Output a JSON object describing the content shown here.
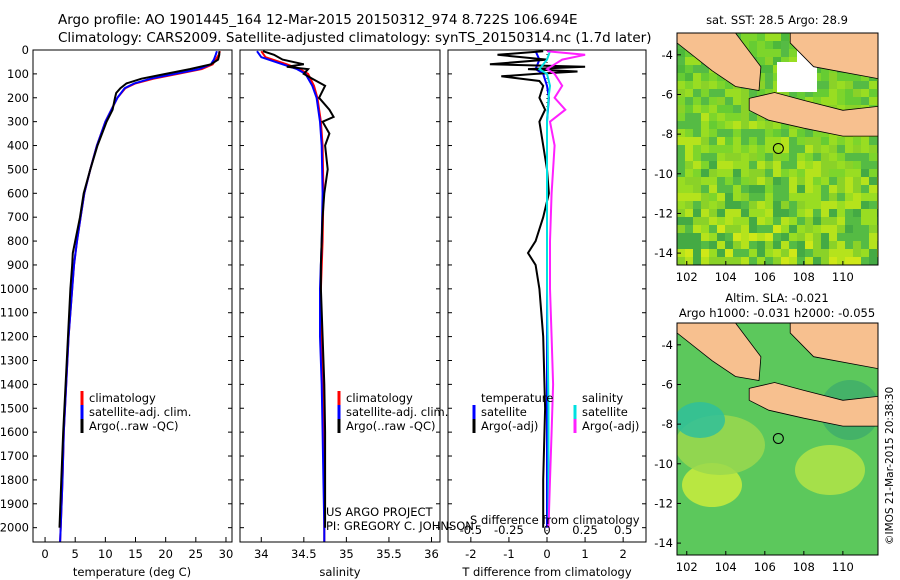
{
  "header": {
    "line1": "Argo profile: AO 1901445_164 12-Mar-2015 20150312_974 8.722S 106.694E",
    "line2": "Climatology: CARS2009. Satellite-adjusted climatology: synTS_20150314.nc (1.7d later)"
  },
  "colors": {
    "climatology": "#ff0000",
    "satellite": "#0000ff",
    "argo": "#000000",
    "salinity_sat": "#00e0e0",
    "salinity_argo": "#ff20ff",
    "land": "#f7c08f"
  },
  "chart_data": [
    {
      "id": "temperature",
      "type": "line",
      "xlabel": "temperature (deg C)",
      "ylabel": "",
      "xlim": [
        -2,
        31
      ],
      "ylim": [
        2060,
        0
      ],
      "xticks": [
        0,
        5,
        10,
        15,
        20,
        25,
        30
      ],
      "yticks": [
        0,
        100,
        200,
        300,
        400,
        500,
        600,
        700,
        800,
        900,
        1000,
        1100,
        1200,
        1300,
        1400,
        1500,
        1600,
        1700,
        1800,
        1900,
        2000
      ],
      "legend": [
        "climatology",
        "satellite-adj. clim.",
        "Argo(..raw -QC)"
      ],
      "series": [
        {
          "name": "climatology",
          "depth": [
            5,
            20,
            40,
            60,
            80,
            100,
            120,
            140,
            160,
            200,
            250,
            300,
            400,
            500,
            600,
            700,
            800,
            900,
            1000,
            1200,
            1400,
            1600,
            1800,
            2000,
            2060
          ],
          "values": [
            29.0,
            28.8,
            28.3,
            27.8,
            26.0,
            22.0,
            18.0,
            15.0,
            13.3,
            12.0,
            11.0,
            10.0,
            8.6,
            7.5,
            6.5,
            5.9,
            5.3,
            4.8,
            4.5,
            3.9,
            3.5,
            3.1,
            2.9,
            2.6,
            2.5
          ]
        },
        {
          "name": "satellite-adj. clim.",
          "depth": [
            5,
            20,
            40,
            60,
            80,
            100,
            120,
            140,
            160,
            200,
            250,
            300,
            400,
            500,
            600,
            700,
            800,
            900,
            1000,
            1200,
            1400,
            1600,
            1800,
            2000,
            2060
          ],
          "values": [
            28.5,
            28.3,
            28.0,
            27.5,
            25.5,
            21.5,
            17.5,
            14.8,
            13.2,
            12.0,
            11.0,
            10.0,
            8.6,
            7.5,
            6.5,
            5.9,
            5.3,
            4.8,
            4.5,
            3.9,
            3.5,
            3.1,
            2.9,
            2.6,
            2.5
          ]
        },
        {
          "name": "Argo(..raw -QC)",
          "depth": [
            5,
            20,
            40,
            60,
            80,
            100,
            120,
            140,
            160,
            180,
            200,
            250,
            300,
            400,
            500,
            600,
            700,
            800,
            850,
            900,
            1000,
            1200,
            1400,
            1600,
            1800,
            2000
          ],
          "values": [
            28.9,
            28.9,
            28.7,
            27.5,
            24.0,
            20.0,
            16.0,
            13.5,
            12.5,
            11.8,
            11.6,
            11.2,
            10.2,
            8.7,
            7.5,
            6.4,
            5.8,
            5.0,
            4.6,
            4.5,
            4.2,
            3.8,
            3.4,
            3.0,
            2.7,
            2.4
          ]
        }
      ]
    },
    {
      "id": "salinity",
      "type": "line",
      "xlabel": "salinity",
      "ylabel": "",
      "xlim": [
        33.75,
        36.1
      ],
      "ylim": [
        2060,
        0
      ],
      "xticks": [
        34,
        34.5,
        35,
        35.5,
        36
      ],
      "legend": [
        "climatology",
        "satellite-adj. clim.",
        "Argo(..raw -QC)"
      ],
      "series": [
        {
          "name": "climatology",
          "depth": [
            5,
            30,
            60,
            80,
            100,
            150,
            200,
            300,
            400,
            600,
            800,
            1000,
            1200,
            1400,
            1600,
            1800,
            2000,
            2060
          ],
          "values": [
            34.0,
            34.05,
            34.3,
            34.45,
            34.55,
            34.62,
            34.66,
            34.7,
            34.72,
            34.73,
            34.72,
            34.7,
            34.7,
            34.72,
            34.73,
            34.74,
            34.74,
            34.74
          ]
        },
        {
          "name": "satellite-adj. clim.",
          "depth": [
            5,
            30,
            60,
            80,
            100,
            150,
            200,
            300,
            400,
            600,
            800,
            1000,
            1200,
            1400,
            1600,
            1800,
            2000,
            2060
          ],
          "values": [
            33.95,
            34.0,
            34.25,
            34.42,
            34.52,
            34.6,
            34.65,
            34.69,
            34.71,
            34.72,
            34.71,
            34.69,
            34.69,
            34.71,
            34.72,
            34.73,
            34.74,
            34.74
          ]
        },
        {
          "name": "Argo(..raw -QC)",
          "depth": [
            5,
            20,
            40,
            60,
            70,
            80,
            100,
            120,
            150,
            200,
            250,
            280,
            300,
            350,
            400,
            500,
            600,
            700,
            800,
            900,
            1000,
            1200,
            1400,
            1600,
            1800,
            2000
          ],
          "values": [
            34.02,
            34.15,
            34.25,
            34.5,
            34.3,
            34.55,
            34.5,
            34.6,
            34.75,
            34.68,
            34.8,
            34.85,
            34.72,
            34.8,
            34.75,
            34.78,
            34.74,
            34.72,
            34.71,
            34.7,
            34.7,
            34.72,
            34.74,
            34.75,
            34.75,
            34.75
          ]
        }
      ]
    },
    {
      "id": "differences",
      "type": "line",
      "xlabel_bottom": "T difference from climatology",
      "xlabel_top": "S difference from climatology",
      "xlim": [
        -2.6,
        2.6
      ],
      "ylim": [
        2060,
        0
      ],
      "xticks_bottom": [
        -2,
        -1,
        0,
        1,
        2
      ],
      "xticks_top": [
        "-0.5",
        "-0.25",
        "0",
        "0.25",
        "0.5"
      ],
      "legend_left_title": "temperature",
      "legend_left": [
        "satellite",
        "Argo(-adj)"
      ],
      "legend_right_title": "salinity",
      "legend_right": [
        "satellite",
        "Argo(-adj)"
      ],
      "series": [
        {
          "name": "T satellite",
          "depth": [
            5,
            40,
            80,
            100,
            150,
            200,
            300,
            500,
            800,
            1000,
            1500,
            2000
          ],
          "values": [
            -0.3,
            -0.2,
            -0.3,
            -0.1,
            0.0,
            0.05,
            0.0,
            0.0,
            0.0,
            0.0,
            0.0,
            0.0
          ]
        },
        {
          "name": "T Argo(-adj)",
          "depth": [
            5,
            20,
            40,
            60,
            70,
            80,
            90,
            100,
            110,
            130,
            150,
            200,
            250,
            300,
            400,
            500,
            600,
            700,
            800,
            850,
            900,
            1000,
            1200,
            1500,
            1800,
            2000
          ],
          "values": [
            -0.1,
            -1.3,
            0.0,
            -1.5,
            1.0,
            -0.5,
            0.8,
            -0.3,
            -1.2,
            -0.2,
            -0.1,
            -0.2,
            -0.05,
            -0.2,
            -0.1,
            0.0,
            0.05,
            -0.1,
            -0.3,
            -0.5,
            -0.3,
            -0.2,
            -0.1,
            -0.05,
            -0.1,
            -0.1
          ]
        },
        {
          "name": "S satellite",
          "depth": [
            5,
            40,
            80,
            100,
            150,
            200,
            300,
            500,
            1000,
            1500,
            2000
          ],
          "values": [
            0.02,
            0.0,
            -0.05,
            0.0,
            0.02,
            0.01,
            0.0,
            0.0,
            0.0,
            0.01,
            0.01
          ]
        },
        {
          "name": "S Argo(-adj)",
          "depth": [
            5,
            20,
            40,
            60,
            80,
            100,
            130,
            150,
            200,
            250,
            300,
            400,
            600,
            800,
            1000,
            1200,
            1400,
            1600,
            1800,
            2000
          ],
          "values": [
            0.0,
            0.25,
            0.1,
            0.05,
            0.0,
            0.05,
            0.08,
            0.1,
            0.05,
            0.12,
            0.02,
            0.05,
            0.03,
            0.02,
            0.02,
            0.03,
            0.04,
            0.03,
            0.02,
            0.01
          ]
        }
      ]
    },
    {
      "id": "sst-map",
      "type": "heatmap",
      "title": "sat. SST: 28.5  Argo: 28.9",
      "xticks": [
        102,
        104,
        106,
        108,
        110
      ],
      "yticks": [
        -4,
        -6,
        -8,
        -10,
        -12,
        -14
      ],
      "xlim": [
        101.5,
        111.8
      ],
      "ylim": [
        -14.6,
        -2.9
      ],
      "marker": {
        "lon": 106.694,
        "lat": -8.722
      }
    },
    {
      "id": "sla-map",
      "type": "heatmap",
      "title_line1": "Altim. SLA: -0.021",
      "title_line2": "Argo h1000: -0.031 h2000: -0.055",
      "xticks": [
        102,
        104,
        106,
        108,
        110
      ],
      "yticks": [
        -4,
        -6,
        -8,
        -10,
        -12,
        -14
      ],
      "xlim": [
        101.5,
        111.8
      ],
      "ylim": [
        -14.6,
        -2.9
      ],
      "marker": {
        "lon": 106.694,
        "lat": -8.722
      }
    }
  ],
  "credits": {
    "project": "US ARGO PROJECT",
    "pi": "PI: GREGORY C. JOHNSON",
    "imos": "©IMOS 21-Mar-2015 20:38:30"
  }
}
